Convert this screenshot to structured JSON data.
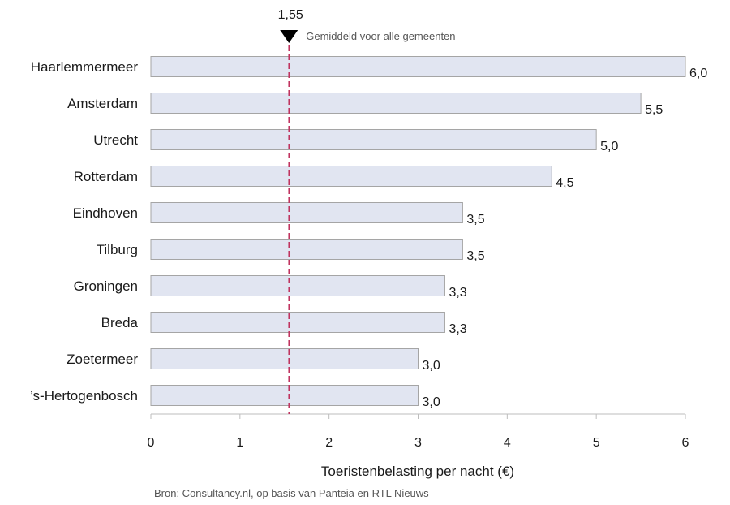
{
  "chart_data": {
    "type": "bar",
    "orientation": "horizontal",
    "categories": [
      "Haarlemmermeer",
      "Amsterdam",
      "Utrecht",
      "Rotterdam",
      "Eindhoven",
      "Tilburg",
      "Groningen",
      "Breda",
      "Zoetermeer",
      "’s-Hertogenbosch"
    ],
    "values": [
      6.0,
      5.5,
      5.0,
      4.5,
      3.5,
      3.5,
      3.3,
      3.3,
      3.0,
      3.0
    ],
    "value_labels": [
      "6,0",
      "5,5",
      "5,0",
      "4,5",
      "3,5",
      "3,5",
      "3,3",
      "3,3",
      "3,0",
      "3,0"
    ],
    "xlabel": "Toeristenbelasting per nacht (€)",
    "ylabel": "",
    "xlim": [
      0,
      6
    ],
    "xticks": [
      "0",
      "1",
      "2",
      "3",
      "4",
      "5",
      "6"
    ],
    "grid": false,
    "reference_line": {
      "value": 1.55,
      "value_label": "1,55",
      "label": "Gemiddeld voor alle gemeenten",
      "color": "#c0335f",
      "style": "dashed"
    },
    "source_note": "Bron: Consultancy.nl, op basis van Panteia en RTL Nieuws",
    "bar_fill": "#e1e5f1",
    "bar_stroke": "#a5a5a5"
  }
}
